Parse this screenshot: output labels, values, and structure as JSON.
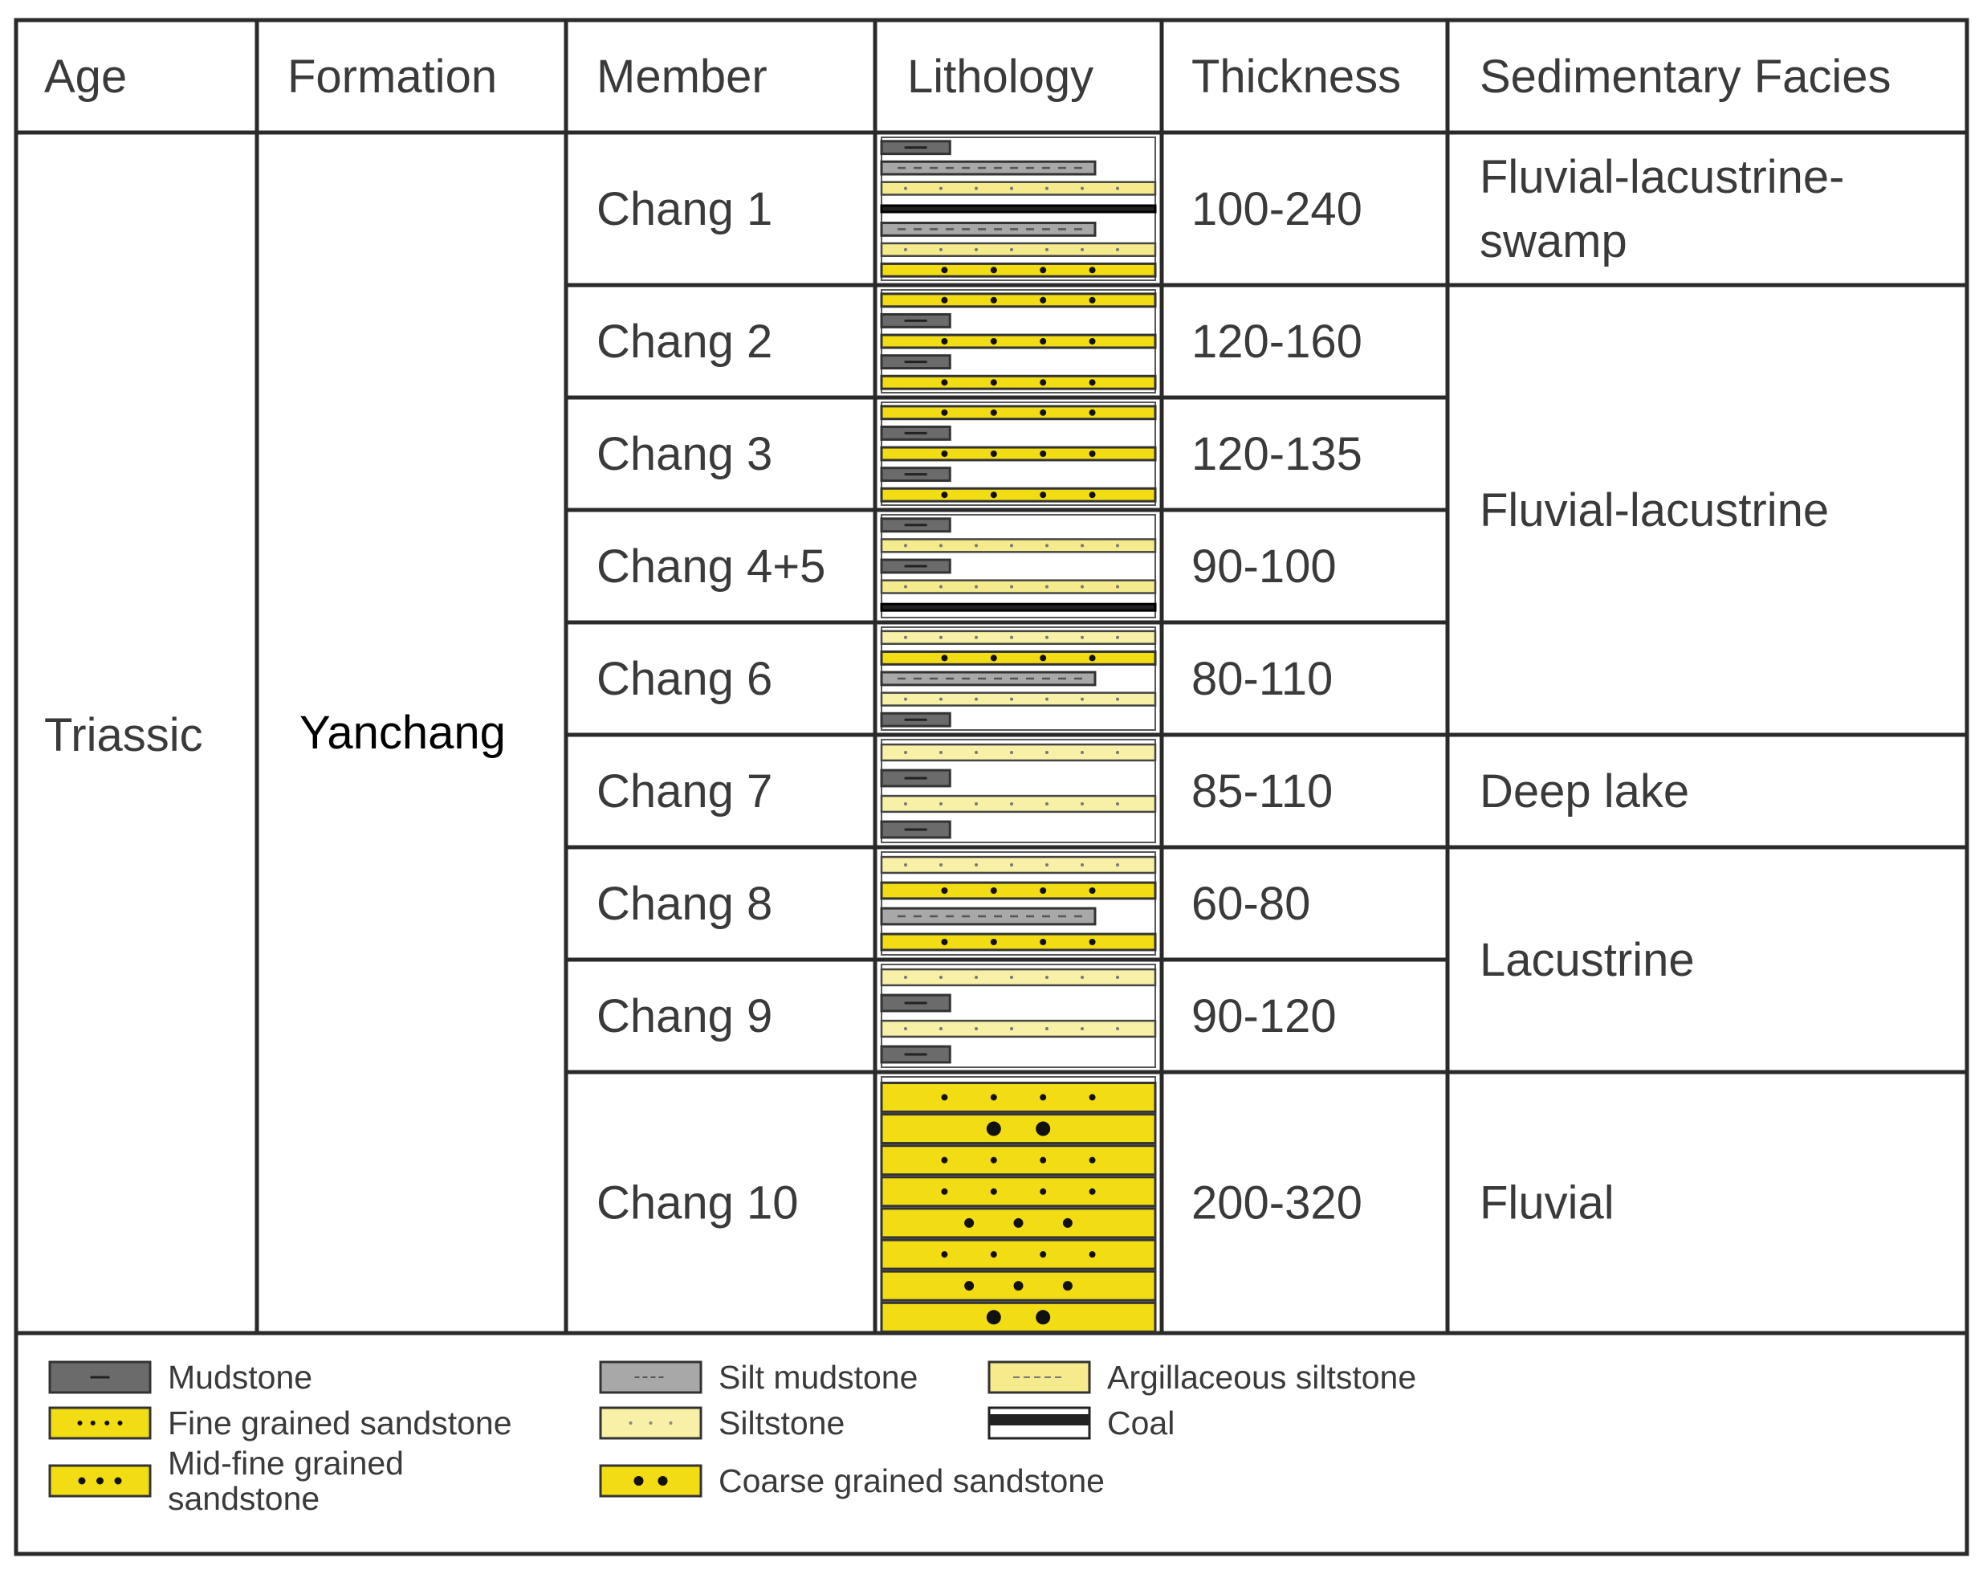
{
  "header": {
    "age": "Age",
    "formation": "Formation",
    "member": "Member",
    "lithology": "Lithology",
    "thickness": "Thickness",
    "facies": "Sedimentary Facies"
  },
  "age": "Triassic",
  "formation": "Yanchang",
  "members": [
    {
      "name": "Chang 1",
      "thickness": "100-240"
    },
    {
      "name": "Chang 2",
      "thickness": "120-160"
    },
    {
      "name": "Chang 3",
      "thickness": "120-135"
    },
    {
      "name": "Chang 4+5",
      "thickness": "90-100"
    },
    {
      "name": "Chang 6",
      "thickness": "80-110"
    },
    {
      "name": "Chang 7",
      "thickness": "85-110"
    },
    {
      "name": "Chang 8",
      "thickness": "60-80"
    },
    {
      "name": "Chang 9",
      "thickness": "90-120"
    },
    {
      "name": "Chang 10",
      "thickness": "200-320"
    }
  ],
  "facies": [
    {
      "label": [
        "Fluvial-lacustrine-",
        "swamp"
      ],
      "members": [
        "Chang 1"
      ]
    },
    {
      "label": [
        "Fluvial-lacustrine"
      ],
      "members": [
        "Chang 2",
        "Chang 3",
        "Chang 4+5",
        "Chang 6"
      ]
    },
    {
      "label": [
        "Deep lake"
      ],
      "members": [
        "Chang 7"
      ]
    },
    {
      "label": [
        "Lacustrine"
      ],
      "members": [
        "Chang 8",
        "Chang 9"
      ]
    },
    {
      "label": [
        "Fluvial"
      ],
      "members": [
        "Chang 10"
      ]
    }
  ],
  "lithology_columns": [
    [
      "mudstone",
      "silt_mudstone",
      "argillaceous_siltstone",
      "coal",
      "silt_mudstone",
      "argillaceous_siltstone",
      "fine_sandstone"
    ],
    [
      "fine_sandstone",
      "mudstone",
      "fine_sandstone",
      "mudstone",
      "fine_sandstone"
    ],
    [
      "fine_sandstone",
      "mudstone",
      "fine_sandstone",
      "mudstone",
      "fine_sandstone"
    ],
    [
      "mudstone",
      "argillaceous_siltstone",
      "mudstone",
      "argillaceous_siltstone",
      "coal"
    ],
    [
      "siltstone",
      "fine_sandstone",
      "silt_mudstone",
      "siltstone",
      "mudstone"
    ],
    [
      "siltstone",
      "mudstone",
      "siltstone",
      "mudstone"
    ],
    [
      "siltstone",
      "fine_sandstone",
      "silt_mudstone",
      "fine_sandstone"
    ],
    [
      "siltstone",
      "mudstone",
      "siltstone",
      "mudstone"
    ],
    [
      "fine_sandstone",
      "coarse_sandstone",
      "fine_sandstone",
      "fine_sandstone",
      "mid_fine_sandstone",
      "fine_sandstone",
      "mid_fine_sandstone",
      "coarse_sandstone"
    ]
  ],
  "legend": [
    {
      "key": "mudstone",
      "label": [
        "Mudstone"
      ]
    },
    {
      "key": "fine_sandstone",
      "label": [
        "Fine grained sandstone"
      ]
    },
    {
      "key": "mid_fine_sandstone",
      "label": [
        "Mid-fine grained",
        "sandstone"
      ]
    },
    {
      "key": "silt_mudstone",
      "label": [
        "Silt mudstone"
      ]
    },
    {
      "key": "siltstone",
      "label": [
        "Siltstone"
      ]
    },
    {
      "key": "coarse_sandstone",
      "label": [
        "Coarse grained sandstone"
      ]
    },
    {
      "key": "argillaceous_siltstone",
      "label": [
        "Argillaceous siltstone"
      ]
    },
    {
      "key": "coal",
      "label": [
        "Coal"
      ]
    }
  ],
  "colors": {
    "mudstone": "#6b6b6b",
    "silt_mudstone": "#a8a8a8",
    "fine_sandstone": "#f2dc14",
    "mid_fine_sandstone": "#f2dc14",
    "coarse_sandstone": "#f2dc14",
    "siltstone": "#f7f0a6",
    "argillaceous_siltstone": "#f5eb8c",
    "coal": "#222222",
    "line": "#2a2a2a"
  }
}
